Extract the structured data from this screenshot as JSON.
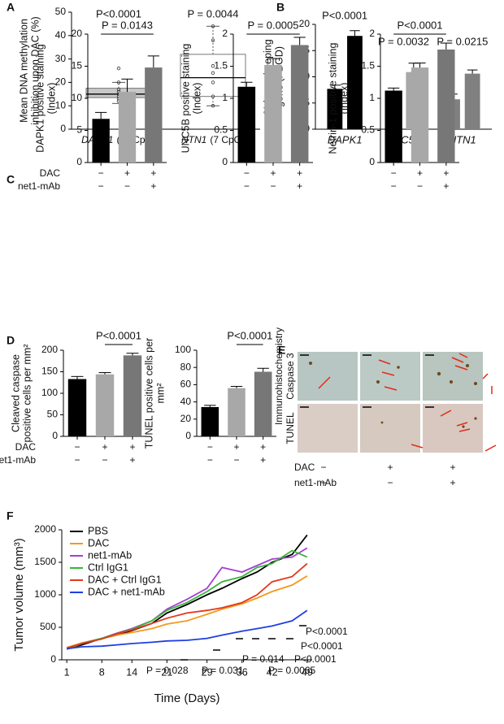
{
  "chart_data": [
    {
      "type": "box",
      "panel": "A",
      "ylabel": [
        "Mean DNA methylation",
        "inhibition upon DAC (%)"
      ],
      "categories": [
        "DAPK1",
        "NTN1"
      ],
      "category_notes": [
        "(11 CpG)",
        "(7 CpG)"
      ],
      "boxes": [
        {
          "min": 11,
          "q1": 13.5,
          "median": 15,
          "q3": 17.5,
          "max": 20,
          "points": [
            12,
            13,
            14,
            15,
            16,
            17,
            20,
            26
          ]
        },
        {
          "min": 10,
          "q1": 14,
          "median": 22,
          "q3": 32,
          "max": 44,
          "points": [
            10,
            14,
            20,
            24,
            27,
            38,
            44
          ]
        }
      ],
      "colors": [
        "#c8c8c8",
        "#ffffff"
      ],
      "annotations": [
        "P<0.0001",
        "P = 0.0044"
      ],
      "ylim": [
        0,
        50
      ],
      "yticks": [
        0,
        10,
        20,
        30,
        40,
        50
      ]
    },
    {
      "type": "grouped-bar",
      "panel": "B",
      "ylabel": [
        "% housekeeping",
        "gene (PBGD)"
      ],
      "categories": [
        "DAPK1",
        "UNC5B",
        "NTN1"
      ],
      "values": [
        [
          7.7,
          17.8
        ],
        [
          3.7,
          10.9
        ],
        [
          5.7,
          10.6
        ]
      ],
      "errors": [
        [
          0.7,
          1.0
        ],
        [
          0.4,
          1.7
        ],
        [
          1.0,
          0.7
        ]
      ],
      "colors": [
        "#000000",
        "#a8a8a8",
        "#808080"
      ],
      "annotations": [
        "P<0.0001",
        "P = 0.0032",
        "P = 0.0215"
      ],
      "ylim": [
        0,
        20
      ],
      "yticks": [
        0,
        5,
        10,
        15,
        20
      ]
    },
    {
      "type": "bar",
      "panel": "C",
      "ylabel": [
        "DAPK1 positive staining",
        "(Index)"
      ],
      "values": [
        6.8,
        11,
        14.8
      ],
      "errors": [
        1,
        2,
        1.8
      ],
      "colors": [
        "#000000",
        "#a8a8a8",
        "#777777"
      ],
      "annotations": [
        "P = 0.0143"
      ],
      "condition_names": [
        "DAC",
        "net1-mAb"
      ],
      "conditions": [
        [
          "−",
          "+",
          "+"
        ],
        [
          "−",
          "−",
          "+"
        ]
      ],
      "ylim": [
        0,
        20
      ],
      "yticks": [
        0,
        5,
        10,
        15,
        20
      ]
    },
    {
      "type": "bar",
      "ylabel": [
        "UNC5B positive staining",
        "(Index)"
      ],
      "values": [
        1.18,
        1.52,
        1.83
      ],
      "errors": [
        0.07,
        0.1,
        0.12
      ],
      "colors": [
        "#000000",
        "#a8a8a8",
        "#777777"
      ],
      "annotations": [
        "P = 0.0005"
      ],
      "conditions": [
        [
          "−",
          "+",
          "+"
        ],
        [
          "−",
          "−",
          "+"
        ]
      ],
      "ylim": [
        0,
        2
      ],
      "yticks": [
        0,
        0.5,
        1,
        1.5,
        2
      ]
    },
    {
      "type": "bar",
      "ylabel": [
        "Netrin-1 positive staining",
        "(Index)"
      ],
      "values": [
        1.12,
        1.48,
        1.76
      ],
      "errors": [
        0.04,
        0.07,
        0.1
      ],
      "colors": [
        "#000000",
        "#a8a8a8",
        "#777777"
      ],
      "annotations": [
        "P<0.0001"
      ],
      "conditions": [
        [
          "−",
          "+",
          "+"
        ],
        [
          "−",
          "−",
          "+"
        ]
      ],
      "ylim": [
        0,
        2
      ],
      "yticks": [
        0,
        0.5,
        1,
        1.5,
        2
      ]
    },
    {
      "type": "bar",
      "panel": "D",
      "ylabel": [
        "Cleaved caspase",
        "positive cells per mm²"
      ],
      "values": [
        133,
        144,
        188
      ],
      "errors": [
        6,
        4,
        5
      ],
      "colors": [
        "#000000",
        "#a8a8a8",
        "#777777"
      ],
      "annotations": [
        "P<0.0001"
      ],
      "condition_names": [
        "DAC",
        "net1-mAb"
      ],
      "conditions": [
        [
          "−",
          "+",
          "+"
        ],
        [
          "−",
          "−",
          "+"
        ]
      ],
      "ylim": [
        0,
        200
      ],
      "yticks": [
        0,
        50,
        100,
        150,
        200
      ]
    },
    {
      "type": "bar",
      "ylabel": [
        "TUNEL positive cells per",
        "mm²"
      ],
      "values": [
        34,
        56,
        75
      ],
      "errors": [
        2,
        2,
        4
      ],
      "colors": [
        "#000000",
        "#a8a8a8",
        "#777777"
      ],
      "annotations": [
        "P<0.0001"
      ],
      "conditions": [
        [
          "−",
          "+",
          "+"
        ],
        [
          "−",
          "−",
          "+"
        ]
      ],
      "ylim": [
        0,
        100
      ],
      "yticks": [
        0,
        20,
        40,
        60,
        80,
        100
      ]
    },
    {
      "type": "line",
      "panel": "F",
      "ylabel": "Tumor volume (mm³)",
      "xlabel": "Time (Days)",
      "x": [
        1,
        4,
        8,
        11,
        14,
        18,
        21,
        25,
        29,
        32,
        36,
        39,
        42,
        46,
        49
      ],
      "series": [
        {
          "name": "PBS",
          "color": "#000000",
          "values": [
            170,
            230,
            330,
            380,
            450,
            560,
            720,
            850,
            1000,
            1100,
            1250,
            1350,
            1500,
            1620,
            1920
          ]
        },
        {
          "name": "DAC",
          "color": "#f39a1e",
          "values": [
            190,
            260,
            330,
            380,
            420,
            480,
            550,
            600,
            700,
            780,
            860,
            950,
            1050,
            1150,
            1290
          ]
        },
        {
          "name": "net1-mAb",
          "color": "#a63fd6",
          "values": [
            170,
            250,
            330,
            410,
            480,
            600,
            780,
            930,
            1100,
            1420,
            1350,
            1450,
            1550,
            1580,
            1720
          ]
        },
        {
          "name": "Ctrl IgG1",
          "color": "#37b537",
          "values": [
            160,
            250,
            330,
            400,
            470,
            600,
            760,
            880,
            1050,
            1200,
            1280,
            1420,
            1480,
            1680,
            1580
          ]
        },
        {
          "name": "DAC + Ctrl IgG1",
          "color": "#e2381a",
          "values": [
            180,
            250,
            320,
            400,
            460,
            560,
            640,
            720,
            760,
            800,
            880,
            1000,
            1200,
            1280,
            1480
          ]
        },
        {
          "name": "DAC + net1-mAb",
          "color": "#1f3fe0",
          "values": [
            170,
            200,
            210,
            230,
            250,
            270,
            290,
            300,
            330,
            380,
            440,
            480,
            520,
            600,
            760
          ]
        }
      ],
      "annotations": [
        "P<0.0001",
        "P<0.0001",
        "P = 0.014",
        "P<0.0001",
        "P = 0.028",
        "P = 0.031",
        "P = 0.0065"
      ],
      "xlim": [
        0,
        50
      ],
      "xticks": [
        1,
        8,
        14,
        21,
        29,
        36,
        42,
        49
      ],
      "ylim": [
        0,
        2000
      ],
      "yticks": [
        0,
        500,
        1000,
        1500,
        2000
      ]
    }
  ],
  "panel_e": {
    "panel": "E",
    "row_labels": [
      [
        "Immunohistochemistry",
        "Caspase 3"
      ],
      [
        "TUNEL"
      ]
    ],
    "condition_names": [
      "DAC",
      "net1-mAb"
    ],
    "conditions": [
      [
        "−",
        "+",
        "+"
      ],
      [
        "−",
        "−",
        "+"
      ]
    ]
  }
}
